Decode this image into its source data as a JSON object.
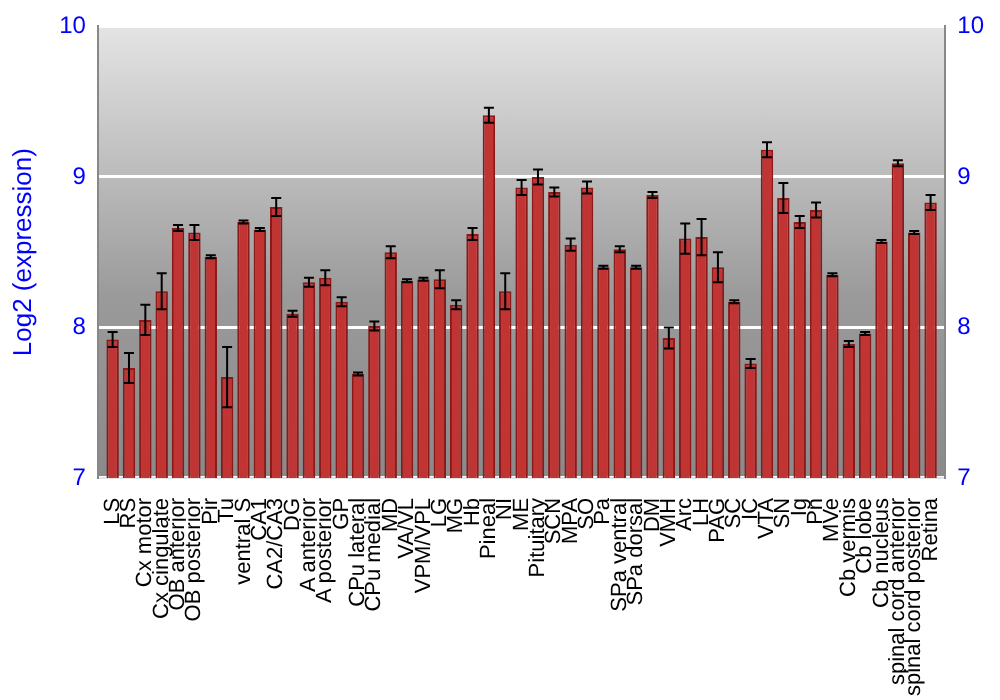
{
  "chart_data": {
    "type": "bar",
    "ylabel": "Log2 (expression)",
    "categories": [
      "LS",
      "RS",
      "Cx motor",
      "Cx cingulate",
      "OB anterior",
      "OB posterior",
      "Pir",
      "Tu",
      "ventral S",
      "CA1",
      "CA2/CA3",
      "DG",
      "A anterior",
      "A posterior",
      "GP",
      "CPu lateral",
      "CPu medial",
      "MD",
      "VA/VL",
      "VPM/VPL",
      "LG",
      "MG",
      "Hb",
      "Pineal",
      "NI",
      "ME",
      "Pituitary",
      "SCN",
      "MPA",
      "SO",
      "Pa",
      "SPa ventral",
      "SPa dorsal",
      "DM",
      "VMH",
      "Arc",
      "LH",
      "PAG",
      "SC",
      "IC",
      "VTA",
      "SN",
      "Ig",
      "Pn",
      "MVe",
      "Cb vermis",
      "Cb lobe",
      "Cb nucleus",
      "spinal cord anterior",
      "spinal cord posterior",
      "Retina"
    ],
    "values": [
      7.92,
      7.73,
      8.05,
      8.24,
      8.66,
      8.63,
      8.47,
      7.67,
      8.7,
      8.65,
      8.8,
      8.09,
      8.3,
      8.33,
      8.17,
      7.69,
      8.01,
      8.5,
      8.31,
      8.32,
      8.32,
      8.15,
      8.62,
      9.41,
      8.24,
      8.93,
      9.0,
      8.9,
      8.55,
      8.93,
      8.4,
      8.52,
      8.4,
      8.88,
      7.93,
      8.59,
      8.6,
      8.4,
      8.17,
      7.76,
      9.18,
      8.86,
      8.7,
      8.78,
      8.35,
      7.89,
      7.96,
      8.57,
      9.09,
      8.63,
      8.83
    ],
    "errors": [
      0.05,
      0.1,
      0.1,
      0.12,
      0.02,
      0.05,
      0.01,
      0.2,
      0.01,
      0.01,
      0.06,
      0.02,
      0.03,
      0.05,
      0.03,
      0.01,
      0.03,
      0.04,
      0.01,
      0.01,
      0.06,
      0.03,
      0.04,
      0.05,
      0.12,
      0.05,
      0.05,
      0.03,
      0.04,
      0.04,
      0.01,
      0.02,
      0.01,
      0.02,
      0.07,
      0.1,
      0.12,
      0.1,
      0.01,
      0.03,
      0.05,
      0.1,
      0.04,
      0.05,
      0.01,
      0.02,
      0.01,
      0.01,
      0.02,
      0.01,
      0.05
    ],
    "color": "#c03434",
    "ylim": [
      7,
      10
    ],
    "yticks": [
      7,
      8,
      9,
      10
    ],
    "y2lim": [
      7,
      10
    ],
    "y2ticks": [
      7,
      8,
      9,
      10
    ],
    "grid": "y",
    "legend": false
  }
}
